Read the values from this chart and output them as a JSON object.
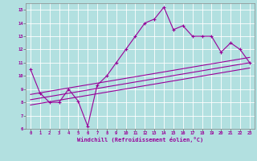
{
  "xlabel": "Windchill (Refroidissement éolien,°C)",
  "background_color": "#b2e0e0",
  "line_color": "#990099",
  "xlim": [
    -0.5,
    23.5
  ],
  "ylim": [
    6,
    15.5
  ],
  "xticks": [
    0,
    1,
    2,
    3,
    4,
    5,
    6,
    7,
    8,
    9,
    10,
    11,
    12,
    13,
    14,
    15,
    16,
    17,
    18,
    19,
    20,
    21,
    22,
    23
  ],
  "yticks": [
    6,
    7,
    8,
    9,
    10,
    11,
    12,
    13,
    14,
    15
  ],
  "series1_x": [
    0,
    1,
    2,
    3,
    4,
    5,
    6,
    7,
    8,
    9,
    10,
    11,
    12,
    13,
    14,
    15,
    16,
    17,
    18,
    19,
    20,
    21,
    22,
    23
  ],
  "series1_y": [
    10.5,
    8.7,
    8.0,
    8.0,
    9.0,
    8.1,
    6.2,
    9.3,
    10.0,
    11.0,
    12.0,
    13.0,
    14.0,
    14.3,
    15.2,
    13.5,
    13.8,
    13.0,
    13.0,
    13.0,
    11.8,
    12.5,
    12.0,
    11.0
  ],
  "series2_x": [
    0,
    23
  ],
  "series2_y": [
    8.2,
    11.0
  ],
  "series3_x": [
    0,
    23
  ],
  "series3_y": [
    7.8,
    10.6
  ],
  "series4_x": [
    0,
    23
  ],
  "series4_y": [
    8.6,
    11.4
  ]
}
